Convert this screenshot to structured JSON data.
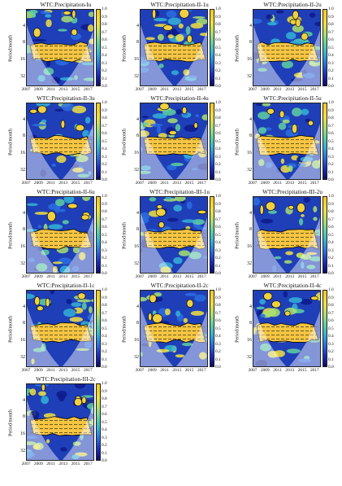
{
  "figure": {
    "ylabel": "Period/month",
    "yticks": [
      "4",
      "8",
      "16",
      "32"
    ],
    "xticks": [
      "2007",
      "2009",
      "2011",
      "2013",
      "2015",
      "2017"
    ],
    "colorbar_ticks": [
      "1.0",
      "0.9",
      "0.8",
      "0.7",
      "0.6",
      "0.5",
      "0.4",
      "0.3",
      "0.2",
      "0.1",
      "0.0"
    ]
  },
  "chart_data": [
    {
      "type": "heatmap",
      "title": "WTC:Precipitation-Iu",
      "band_period": [
        8,
        16
      ],
      "band_strength": 0.9,
      "ylim": [
        2,
        48
      ],
      "xlim": [
        2007,
        2018
      ],
      "zlim": [
        0,
        1
      ]
    },
    {
      "type": "heatmap",
      "title": "WTC:Precipitation-II-1u",
      "band_period": [
        8,
        16
      ],
      "band_strength": 0.92,
      "ylim": [
        2,
        48
      ],
      "xlim": [
        2007,
        2018
      ],
      "zlim": [
        0,
        1
      ]
    },
    {
      "type": "heatmap",
      "title": "WTC:Precipitation-II-2u",
      "band_period": [
        8,
        16
      ],
      "band_strength": 0.9,
      "ylim": [
        2,
        48
      ],
      "xlim": [
        2007,
        2018
      ],
      "zlim": [
        0,
        1
      ]
    },
    {
      "type": "heatmap",
      "title": "WTC:Precipitation-II-3u",
      "band_period": [
        8,
        16
      ],
      "band_strength": 0.9,
      "ylim": [
        2,
        48
      ],
      "xlim": [
        2007,
        2018
      ],
      "zlim": [
        0,
        1
      ]
    },
    {
      "type": "heatmap",
      "title": "WTC:Precipitation-II-4u",
      "band_period": [
        8,
        16
      ],
      "band_strength": 0.9,
      "ylim": [
        2,
        48
      ],
      "xlim": [
        2007,
        2018
      ],
      "zlim": [
        0,
        1
      ]
    },
    {
      "type": "heatmap",
      "title": "WTC:Precipitation-II-5u",
      "band_period": [
        8,
        16
      ],
      "band_strength": 0.9,
      "ylim": [
        2,
        48
      ],
      "xlim": [
        2007,
        2018
      ],
      "zlim": [
        0,
        1
      ]
    },
    {
      "type": "heatmap",
      "title": "WTC:Precipitation-II-6u",
      "band_period": [
        8,
        16
      ],
      "band_strength": 0.9,
      "ylim": [
        2,
        48
      ],
      "xlim": [
        2007,
        2018
      ],
      "zlim": [
        0,
        1
      ]
    },
    {
      "type": "heatmap",
      "title": "WTC:Precipitation-III-1u",
      "band_period": [
        8,
        16
      ],
      "band_strength": 0.9,
      "ylim": [
        2,
        48
      ],
      "xlim": [
        2007,
        2018
      ],
      "zlim": [
        0,
        1
      ]
    },
    {
      "type": "heatmap",
      "title": "WTC:Precipitation-III-2u",
      "band_period": [
        8,
        16
      ],
      "band_strength": 0.9,
      "ylim": [
        2,
        48
      ],
      "xlim": [
        2007,
        2018
      ],
      "zlim": [
        0,
        1
      ]
    },
    {
      "type": "heatmap",
      "title": "WTC:Precipitation-II-1c",
      "band_period": [
        8,
        16
      ],
      "band_strength": 0.9,
      "ylim": [
        2,
        48
      ],
      "xlim": [
        2007,
        2018
      ],
      "zlim": [
        0,
        1
      ]
    },
    {
      "type": "heatmap",
      "title": "WTC:Precipitation-II-2c",
      "band_period": [
        8,
        16
      ],
      "band_strength": 0.85,
      "ylim": [
        2,
        48
      ],
      "xlim": [
        2007,
        2018
      ],
      "zlim": [
        0,
        1
      ]
    },
    {
      "type": "heatmap",
      "title": "WTC:Precipitation-II-4c",
      "band_period": [
        8,
        16
      ],
      "band_strength": 0.9,
      "ylim": [
        2,
        48
      ],
      "xlim": [
        2007,
        2018
      ],
      "zlim": [
        0,
        1
      ]
    },
    {
      "type": "heatmap",
      "title": "WTC:Precipitation-III-2c",
      "band_period": [
        8,
        16
      ],
      "band_strength": 0.9,
      "ylim": [
        2,
        48
      ],
      "xlim": [
        2007,
        2018
      ],
      "zlim": [
        0,
        1
      ]
    }
  ],
  "colors": {
    "low": "#0a0a6e",
    "mid": "#34b3d6",
    "high": "#f7c820",
    "band": "#f5c542",
    "coi_shade": "#ffffff",
    "arrow": "#111111",
    "contour": "#000000"
  }
}
